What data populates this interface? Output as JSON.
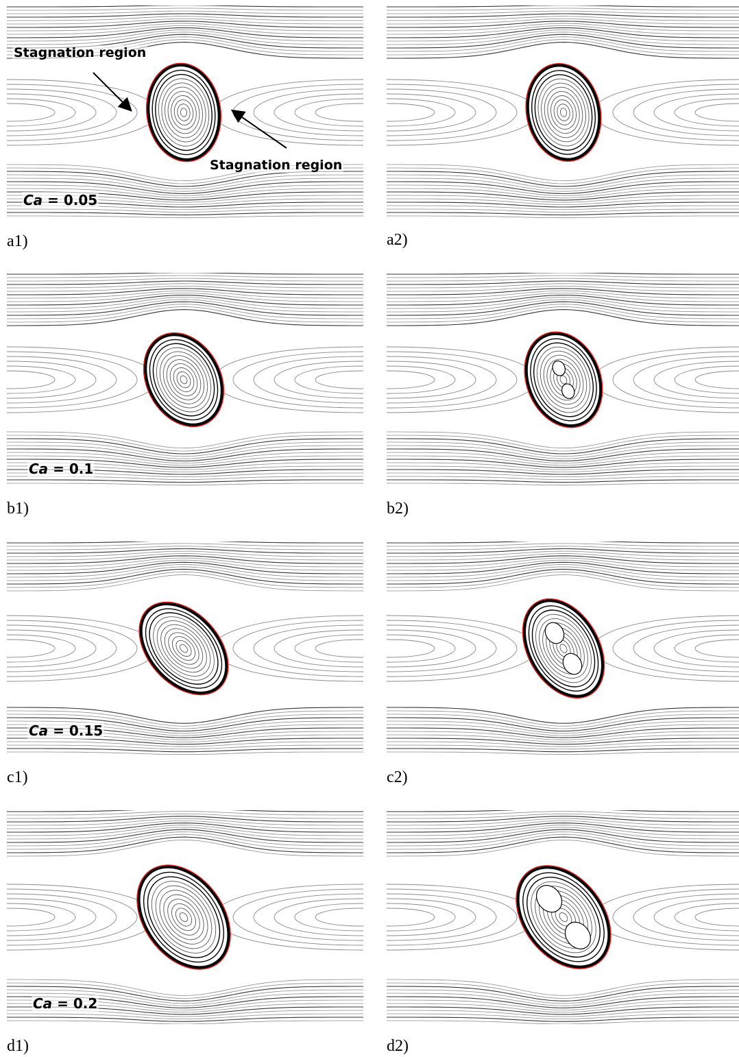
{
  "figure": {
    "rows": [
      {
        "label_left": "a1)",
        "label_right": "a2)",
        "ca_prefix": "Ca",
        "ca_value": " = 0.05",
        "tilt": -8,
        "tilt2": -12,
        "rx": 52,
        "ry": 70,
        "lobes": 0
      },
      {
        "label_left": "b1)",
        "label_right": "b2)",
        "ca_prefix": "Ca",
        "ca_value": " = 0.1",
        "tilt": -28,
        "tilt2": -22,
        "rx": 52,
        "ry": 70,
        "lobes": 1
      },
      {
        "label_left": "c1)",
        "label_right": "c2)",
        "ca_prefix": "Ca",
        "ca_value": " = 0.15",
        "tilt": -42,
        "tilt2": -30,
        "rx": 50,
        "ry": 76,
        "lobes": 2
      },
      {
        "label_left": "d1)",
        "label_right": "d2)",
        "ca_prefix": "Ca",
        "ca_value": " = 0.2",
        "tilt": -36,
        "tilt2": -38,
        "rx": 56,
        "ry": 82,
        "lobes": 3
      }
    ],
    "annotations": {
      "stagnation_left": "Stagnation region",
      "stagnation_right": "Stagnation region"
    },
    "colors": {
      "interface": "#e8201c",
      "streamline": "#444444",
      "dark": "#000000"
    }
  }
}
